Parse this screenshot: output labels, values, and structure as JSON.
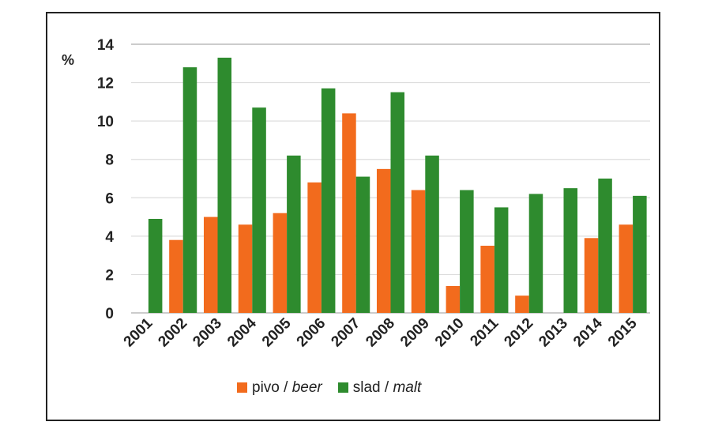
{
  "chart_data": {
    "type": "bar",
    "title": "",
    "ylabel": "%",
    "xlabel": "",
    "ylim": [
      0,
      14
    ],
    "yticks": [
      0,
      2,
      4,
      6,
      8,
      10,
      12,
      14
    ],
    "grid": true,
    "legend_position": "bottom",
    "categories": [
      "2001",
      "2002",
      "2003",
      "2004",
      "2005",
      "2006",
      "2007",
      "2008",
      "2009",
      "2010",
      "2011",
      "2012",
      "2013",
      "2014",
      "2015"
    ],
    "series": [
      {
        "name": "pivo / beer",
        "name_plain": "pivo /",
        "name_italic": "beer",
        "color": "#f26b1d",
        "values": [
          0,
          3.8,
          5.0,
          4.6,
          5.2,
          6.8,
          10.4,
          7.5,
          6.4,
          1.4,
          3.5,
          0.9,
          0,
          3.9,
          4.6
        ]
      },
      {
        "name": "slad / malt",
        "name_plain": "slad /",
        "name_italic": "malt",
        "color": "#2e8b2e",
        "values": [
          4.9,
          12.8,
          13.3,
          10.7,
          8.2,
          11.7,
          7.1,
          11.5,
          8.2,
          6.4,
          5.5,
          6.2,
          6.5,
          7.0,
          6.1
        ]
      }
    ]
  }
}
